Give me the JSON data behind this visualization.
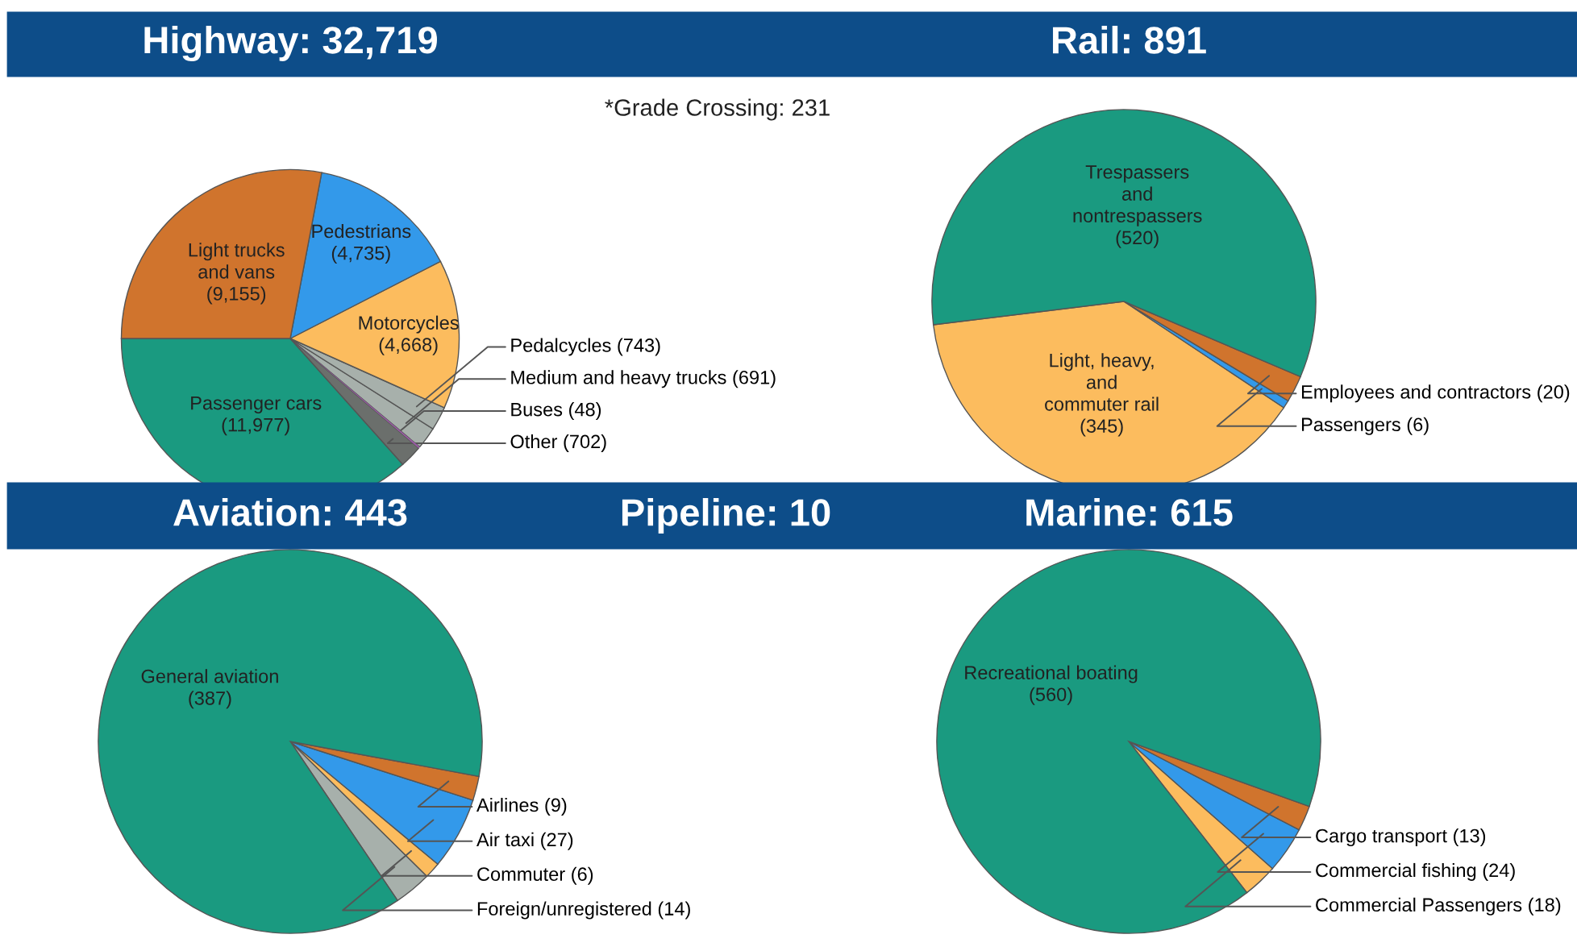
{
  "chart_data": [
    {
      "type": "pie",
      "title": "Highway: 32,719",
      "annotations": [
        "*Grade Crossing: 231"
      ],
      "value_labels": [
        "(11,977)",
        "(702)",
        "(48)",
        "(691)",
        "(743)",
        "(4,668)",
        "(4,735)",
        "(9,155)"
      ],
      "categories": [
        "Passenger cars",
        "Other",
        "Buses",
        "Medium and heavy trucks",
        "Pedalcycles",
        "Motorcycles",
        "Pedestrians",
        "Light trucks\nand vans"
      ],
      "values": [
        11977,
        702,
        48,
        691,
        743,
        4668,
        4735,
        9155
      ],
      "colors": [
        "#1a9a80",
        "#6b6f6c",
        "#9b5ba6",
        "#a7b0ab",
        "#a7b0ab",
        "#fcbc5e",
        "#3399ea",
        "#d0742d"
      ]
    },
    {
      "type": "pie",
      "title": "Rail: 891",
      "value_labels": [
        "(345)",
        "(6)",
        "(20)",
        "(520)"
      ],
      "categories": [
        "Light, heavy,\nand\ncommuter rail",
        "Passengers",
        "Employees and contractors",
        "Trespassers\nand\nnontrespassers"
      ],
      "values": [
        345,
        6,
        20,
        520
      ],
      "colors": [
        "#fcbc5e",
        "#3399ea",
        "#d0742d",
        "#1a9a80"
      ]
    },
    {
      "type": "pie",
      "title": "Aviation: 443",
      "value_labels": [
        "(14)",
        "(6)",
        "(27)",
        "(9)",
        "(387)"
      ],
      "categories": [
        "Foreign/unregistered",
        "Commuter",
        "Air taxi",
        "Airlines",
        "General aviation"
      ],
      "values": [
        14,
        6,
        27,
        9,
        387
      ],
      "colors": [
        "#a7b0ab",
        "#fcbc5e",
        "#3399ea",
        "#d0742d",
        "#1a9a80"
      ]
    },
    {
      "type": "other",
      "title": "Pipeline: 10"
    },
    {
      "type": "pie",
      "title": "Marine: 615",
      "value_labels": [
        "(18)",
        "(24)",
        "(13)",
        "(560)"
      ],
      "categories": [
        "Commercial Passengers",
        "Commercial fishing",
        "Cargo transport",
        "Recreational boating"
      ],
      "values": [
        18,
        24,
        13,
        560
      ],
      "colors": [
        "#fcbc5e",
        "#3399ea",
        "#d0742d",
        "#1a9a80"
      ]
    }
  ]
}
